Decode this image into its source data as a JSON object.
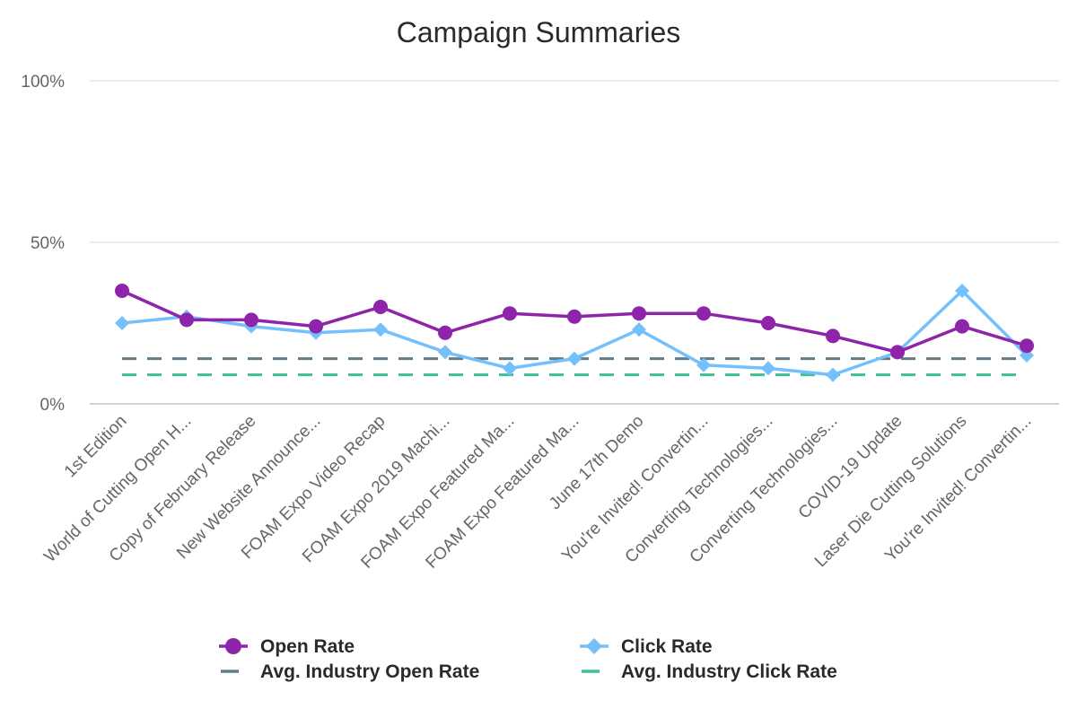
{
  "chart_data": {
    "type": "line",
    "title": "Campaign Summaries",
    "xlabel": "",
    "ylabel": "",
    "ylim": [
      0,
      100
    ],
    "yticks": [
      "0%",
      "50%",
      "100%"
    ],
    "ytick_values": [
      0,
      50,
      100
    ],
    "grid": true,
    "legend_position": "bottom",
    "categories": [
      "1st Edition",
      "World of Cutting Open H...",
      "Copy of February Release",
      "New Website Announce...",
      "FOAM Expo Video Recap",
      "FOAM Expo 2019 Machi...",
      "FOAM Expo Featured Ma...",
      "FOAM Expo Featured Ma...",
      "June 17th Demo",
      "You're Invited! Convertin...",
      "Converting Technologies...",
      "Converting Technologies...",
      "COVID-19 Update",
      "Laser Die Cutting Solutions",
      "You're Invited! Convertin..."
    ],
    "series": [
      {
        "name": "Open Rate",
        "color": "#8e24aa",
        "marker": "circle",
        "style": "solid",
        "values": [
          35,
          26,
          26,
          24,
          30,
          22,
          28,
          27,
          28,
          28,
          25,
          21,
          16,
          24,
          18
        ]
      },
      {
        "name": "Click Rate",
        "color": "#74c0fc",
        "marker": "diamond",
        "style": "solid",
        "values": [
          25,
          27,
          24,
          22,
          23,
          16,
          11,
          14,
          23,
          12,
          11,
          9,
          16,
          35,
          15
        ]
      },
      {
        "name": "Avg. Industry Open Rate",
        "color": "#607d8b",
        "marker": "none",
        "style": "dashed",
        "values": [
          14,
          14,
          14,
          14,
          14,
          14,
          14,
          14,
          14,
          14,
          14,
          14,
          14,
          14,
          14
        ]
      },
      {
        "name": "Avg. Industry Click Rate",
        "color": "#3dbf99",
        "marker": "none",
        "style": "dashed",
        "values": [
          9,
          9,
          9,
          9,
          9,
          9,
          9,
          9,
          9,
          9,
          9,
          9,
          9,
          9,
          9
        ]
      }
    ]
  }
}
